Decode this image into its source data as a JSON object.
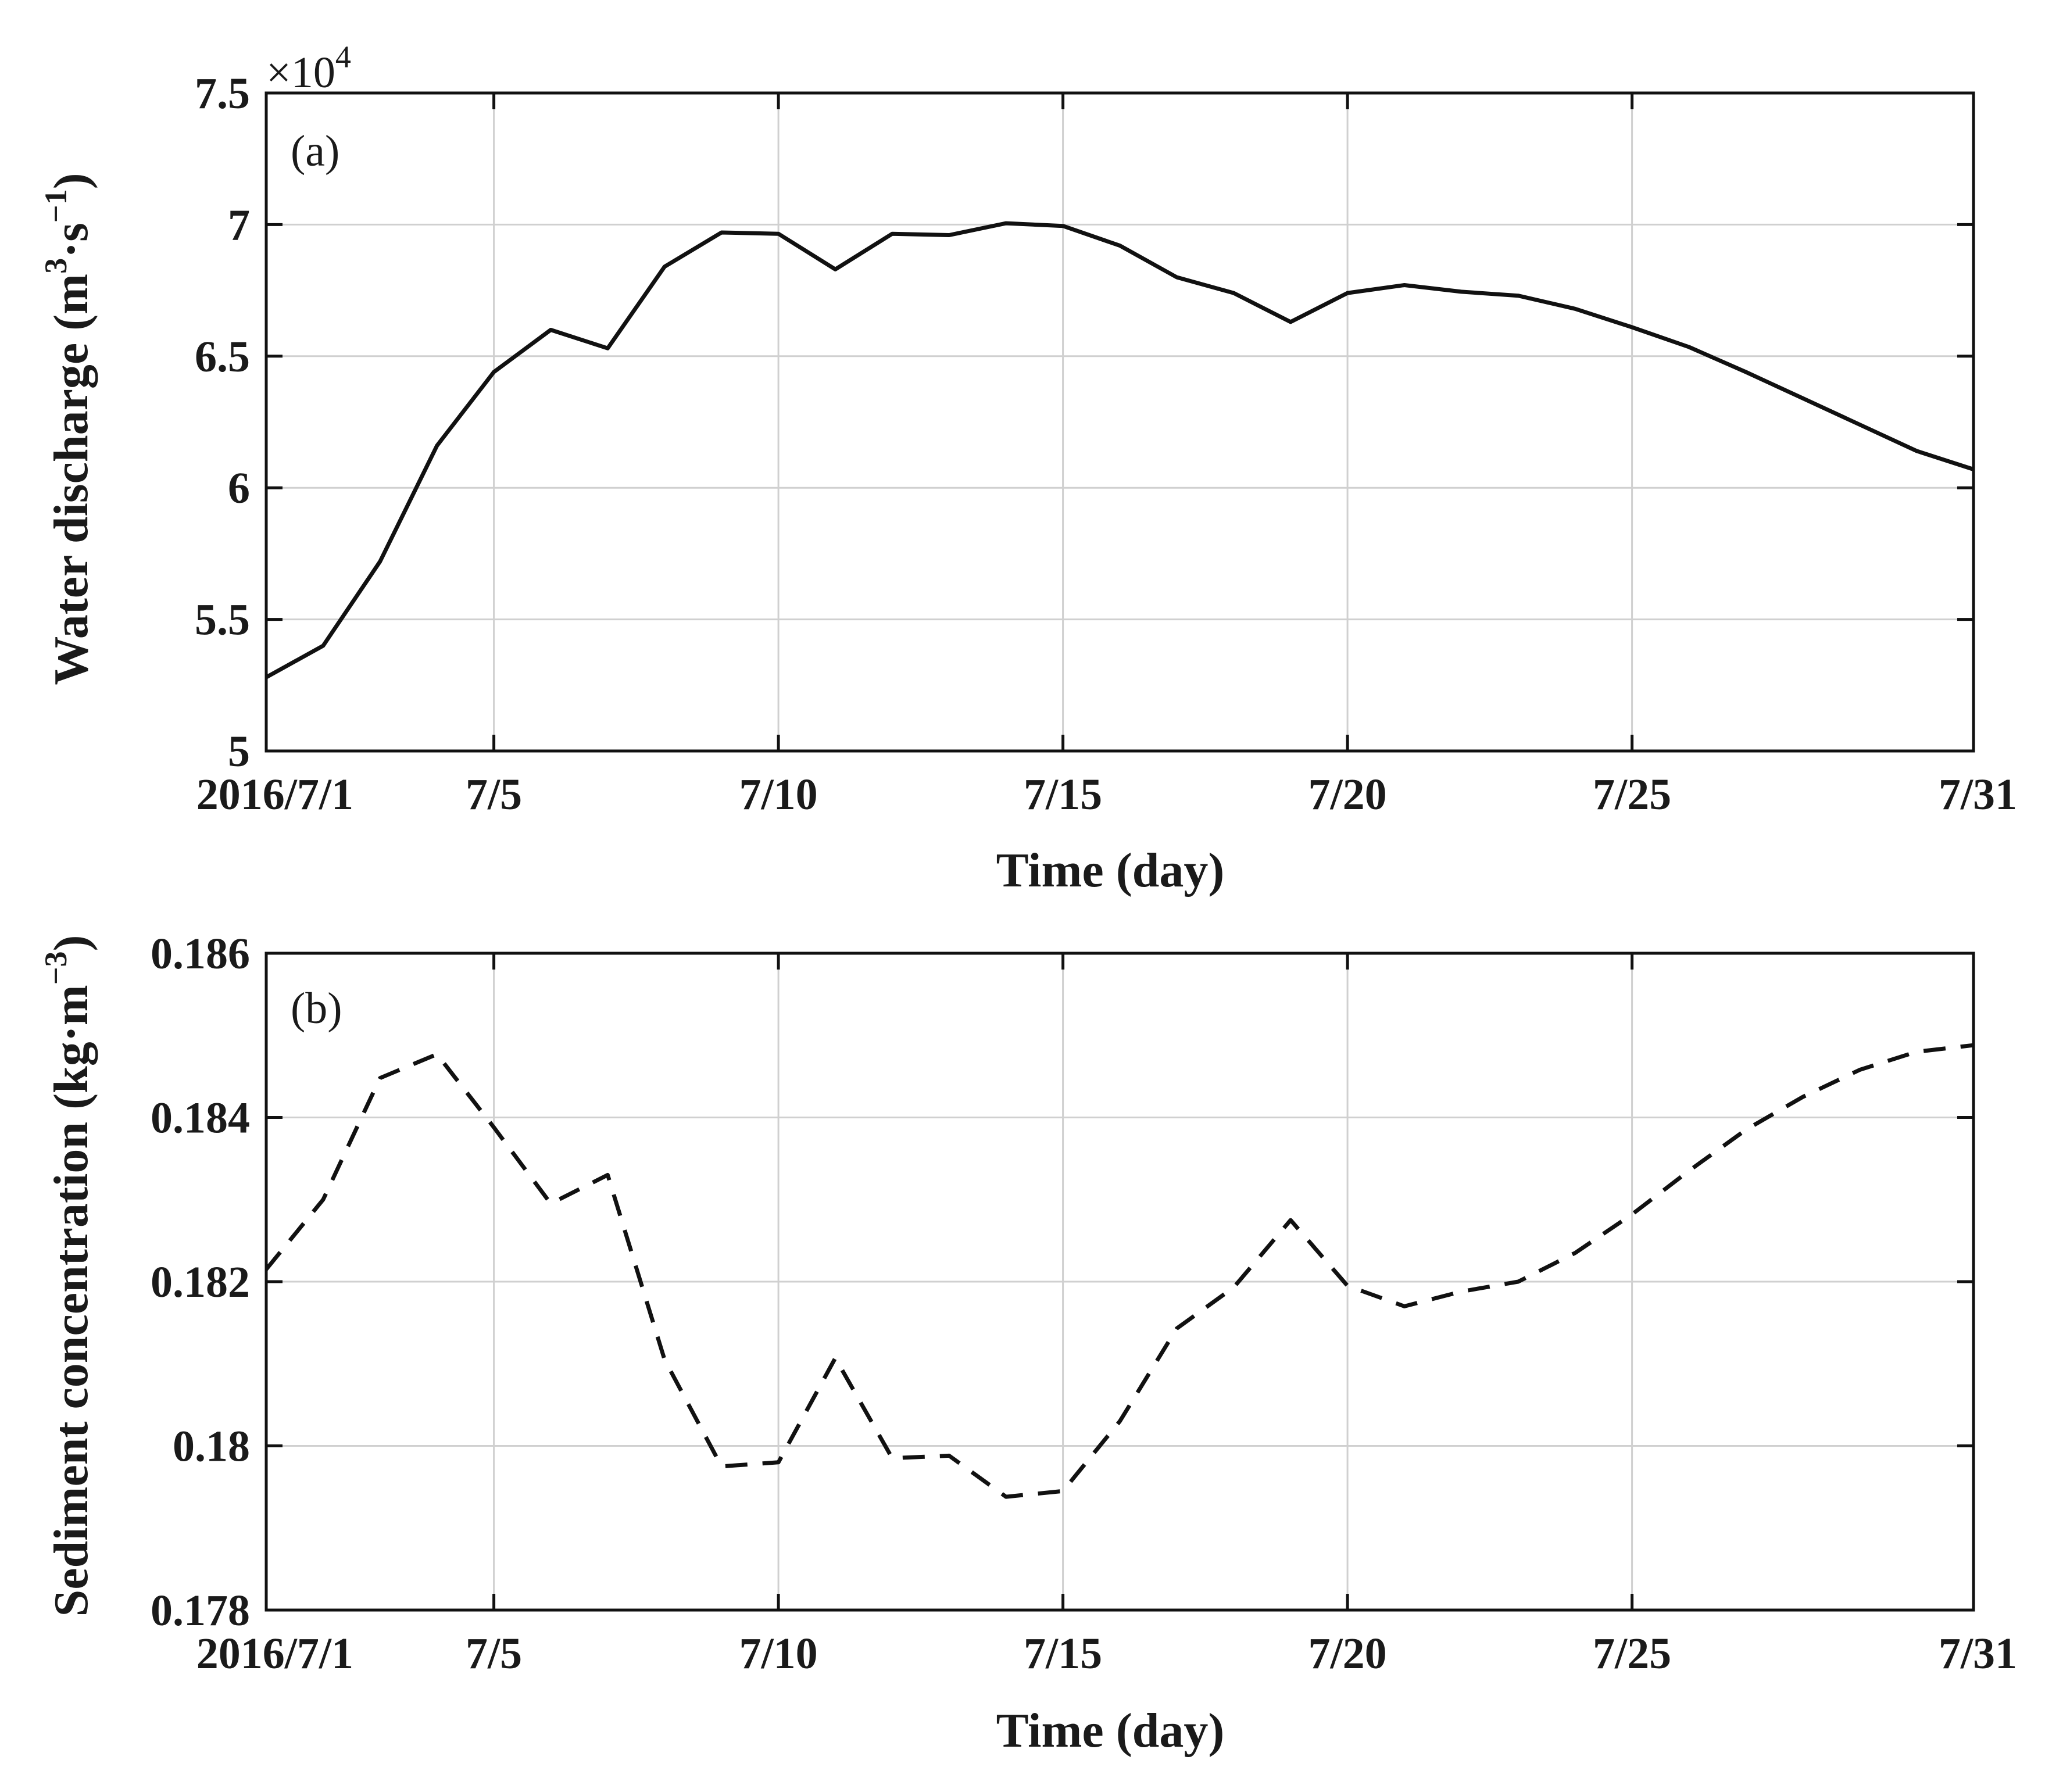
{
  "chart_data": [
    {
      "type": "line",
      "panel_label": "(a)",
      "xlabel": "Time (day)",
      "ylabel_main": "Water discharge (m",
      "ylabel_sup1": "3",
      "ylabel_mid": "·s",
      "ylabel_sup2": "−1",
      "ylabel_end": ")",
      "y_multiplier_base": "×10",
      "y_multiplier_exp": "4",
      "x": [
        1,
        2,
        3,
        4,
        5,
        6,
        7,
        8,
        9,
        10,
        11,
        12,
        13,
        14,
        15,
        16,
        17,
        18,
        19,
        20,
        21,
        22,
        23,
        24,
        25,
        26,
        27,
        28,
        29,
        30,
        31
      ],
      "values": [
        5.28,
        5.4,
        5.72,
        6.16,
        6.44,
        6.6,
        6.53,
        6.84,
        6.97,
        6.965,
        6.83,
        6.965,
        6.96,
        7.005,
        6.995,
        6.92,
        6.8,
        6.74,
        6.63,
        6.74,
        6.77,
        6.745,
        6.73,
        6.68,
        6.61,
        6.535,
        6.44,
        6.34,
        6.24,
        6.14,
        6.07
      ],
      "line_style": "solid",
      "xlim": [
        1,
        31
      ],
      "ylim": [
        5,
        7.5
      ],
      "xticks": [
        1,
        5,
        10,
        15,
        20,
        25,
        31
      ],
      "xtick_labels": [
        "2016/7/1",
        "7/5",
        "7/10",
        "7/15",
        "7/20",
        "7/25",
        "7/31"
      ],
      "yticks": [
        5,
        5.5,
        6,
        6.5,
        7,
        7.5
      ],
      "ytick_labels": [
        "5",
        "5.5",
        "6",
        "6.5",
        "7",
        "7.5"
      ],
      "grid": true
    },
    {
      "type": "line",
      "panel_label": "(b)",
      "xlabel": "Time (day)",
      "ylabel_main": "Sediment concentration (kg·m",
      "ylabel_sup1": "−3",
      "ylabel_end": ")",
      "x": [
        1,
        2,
        3,
        4,
        5,
        6,
        7,
        8,
        9,
        10,
        11,
        12,
        13,
        14,
        15,
        16,
        17,
        18,
        19,
        20,
        21,
        22,
        23,
        24,
        25,
        26,
        27,
        28,
        29,
        30,
        31
      ],
      "values": [
        0.18215,
        0.183,
        0.18448,
        0.18477,
        0.18388,
        0.18295,
        0.1833,
        0.18105,
        0.17975,
        0.1798,
        0.18107,
        0.17985,
        0.17988,
        0.17938,
        0.17945,
        0.1803,
        0.18143,
        0.18193,
        0.18275,
        0.18195,
        0.1817,
        0.18188,
        0.182,
        0.18235,
        0.18282,
        0.18335,
        0.18385,
        0.18425,
        0.18458,
        0.1848,
        0.18488
      ],
      "line_style": "dashed",
      "xlim": [
        1,
        31
      ],
      "ylim": [
        0.178,
        0.186
      ],
      "xticks": [
        1,
        5,
        10,
        15,
        20,
        25,
        31
      ],
      "xtick_labels": [
        "2016/7/1",
        "7/5",
        "7/10",
        "7/15",
        "7/20",
        "7/25",
        "7/31"
      ],
      "yticks": [
        0.178,
        0.18,
        0.182,
        0.184,
        0.186
      ],
      "ytick_labels": [
        "0.178",
        "0.18",
        "0.182",
        "0.184",
        "0.186"
      ],
      "grid": true
    }
  ]
}
